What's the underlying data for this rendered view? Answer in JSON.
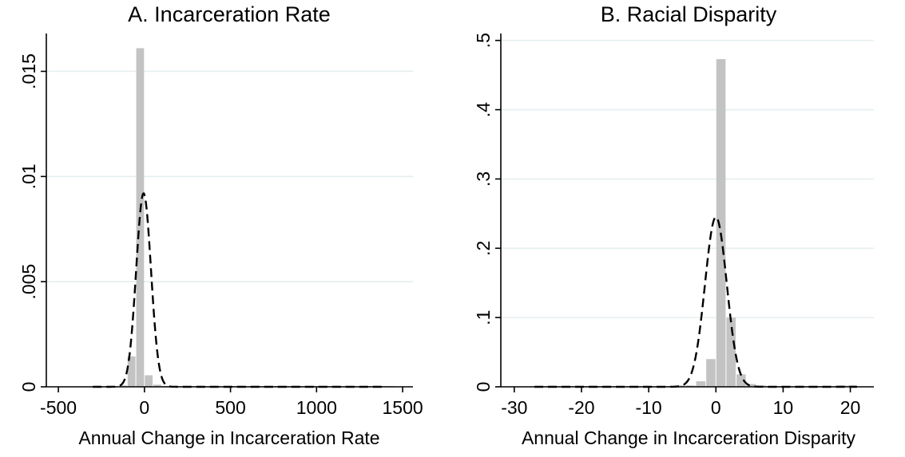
{
  "chart_data": [
    {
      "type": "bar",
      "title": "A. Incarceration Rate",
      "xlabel": "Annual Change in Incarceration Rate",
      "ylabel": "",
      "xlim": [
        -570,
        1560
      ],
      "ylim": [
        0,
        0.0168
      ],
      "xticks": [
        -500,
        0,
        500,
        1000,
        1500
      ],
      "xtick_labels": [
        "-500",
        "0",
        "500",
        "1000",
        "1500"
      ],
      "yticks": [
        0,
        0.005,
        0.01,
        0.015
      ],
      "ytick_labels": [
        "0",
        ".005",
        ".01",
        ".015"
      ],
      "grid": true,
      "bin_width": 50,
      "bars": [
        {
          "x0": -300,
          "x1": -250,
          "y": 3e-05
        },
        {
          "x0": -250,
          "x1": -200,
          "y": 3e-05
        },
        {
          "x0": -200,
          "x1": -150,
          "y": 3e-05
        },
        {
          "x0": -150,
          "x1": -100,
          "y": 6e-05
        },
        {
          "x0": -100,
          "x1": -50,
          "y": 0.00145
        },
        {
          "x0": -50,
          "x1": 0,
          "y": 0.0161
        },
        {
          "x0": 0,
          "x1": 50,
          "y": 0.00055
        },
        {
          "x0": 50,
          "x1": 100,
          "y": 0.0001
        },
        {
          "x0": 100,
          "x1": 150,
          "y": 4e-05
        },
        {
          "x0": 150,
          "x1": 200,
          "y": 3e-05
        },
        {
          "x0": 200,
          "x1": 250,
          "y": 3e-05
        },
        {
          "x0": 250,
          "x1": 300,
          "y": 3e-05
        },
        {
          "x0": 300,
          "x1": 350,
          "y": 2e-05
        },
        {
          "x0": 350,
          "x1": 400,
          "y": 2e-05
        },
        {
          "x0": 400,
          "x1": 450,
          "y": 2e-05
        },
        {
          "x0": 450,
          "x1": 500,
          "y": 2e-05
        },
        {
          "x0": 500,
          "x1": 550,
          "y": 2e-05
        },
        {
          "x0": 550,
          "x1": 600,
          "y": 2e-05
        },
        {
          "x0": 600,
          "x1": 650,
          "y": 2e-05
        },
        {
          "x0": 650,
          "x1": 700,
          "y": 2e-05
        },
        {
          "x0": 700,
          "x1": 750,
          "y": 2e-05
        },
        {
          "x0": 750,
          "x1": 800,
          "y": 2e-05
        },
        {
          "x0": 800,
          "x1": 850,
          "y": 2e-05
        },
        {
          "x0": 850,
          "x1": 900,
          "y": 2e-05
        },
        {
          "x0": 900,
          "x1": 950,
          "y": 2e-05
        },
        {
          "x0": 950,
          "x1": 1000,
          "y": 2e-05
        },
        {
          "x0": 1000,
          "x1": 1050,
          "y": 2e-05
        },
        {
          "x0": 1050,
          "x1": 1100,
          "y": 2e-05
        },
        {
          "x0": 1100,
          "x1": 1150,
          "y": 2e-05
        },
        {
          "x0": 1150,
          "x1": 1200,
          "y": 2e-05
        },
        {
          "x0": 1200,
          "x1": 1250,
          "y": 2e-05
        },
        {
          "x0": 1250,
          "x1": 1300,
          "y": 2e-05
        },
        {
          "x0": 1300,
          "x1": 1350,
          "y": 2e-05
        },
        {
          "x0": 1350,
          "x1": 1400,
          "y": 2e-05
        },
        {
          "x0": 1400,
          "x1": 1450,
          "y": 3e-05
        }
      ],
      "density_curve": {
        "type": "normal",
        "mean": -5,
        "sd": 43,
        "peak": 0.0092,
        "x_range": [
          -300,
          1400
        ],
        "style": "dashed"
      }
    },
    {
      "type": "bar",
      "title": "B. Racial Disparity",
      "xlabel": "Annual Change in Incarceration Disparity",
      "ylabel": "",
      "xlim": [
        -32,
        23.5
      ],
      "ylim": [
        0,
        0.51
      ],
      "xticks": [
        -30,
        -20,
        -10,
        0,
        10,
        20
      ],
      "xtick_labels": [
        "-30",
        "-20",
        "-10",
        "0",
        "10",
        "20"
      ],
      "yticks": [
        0,
        0.1,
        0.2,
        0.3,
        0.4,
        0.5
      ],
      "ytick_labels": [
        "0",
        ".1",
        ".2",
        ".3",
        ".4",
        ".5"
      ],
      "grid": true,
      "bin_width": 1.5,
      "bars": [
        {
          "x0": -27,
          "x1": -25.5,
          "y": 0.001
        },
        {
          "x0": -25.5,
          "x1": -24,
          "y": 0.001
        },
        {
          "x0": -24,
          "x1": -22.5,
          "y": 0.001
        },
        {
          "x0": -22.5,
          "x1": -21,
          "y": 0.001
        },
        {
          "x0": -21,
          "x1": -19.5,
          "y": 0.001
        },
        {
          "x0": -19.5,
          "x1": -18,
          "y": 0.001
        },
        {
          "x0": -18,
          "x1": -16.5,
          "y": 0.001
        },
        {
          "x0": -16.5,
          "x1": -15,
          "y": 0.001
        },
        {
          "x0": -15,
          "x1": -13.5,
          "y": 0.001
        },
        {
          "x0": -13.5,
          "x1": -12,
          "y": 0.001
        },
        {
          "x0": -12,
          "x1": -10.5,
          "y": 0.001
        },
        {
          "x0": -10.5,
          "x1": -9,
          "y": 0.001
        },
        {
          "x0": -9,
          "x1": -7.5,
          "y": 0.001
        },
        {
          "x0": -7.5,
          "x1": -6,
          "y": 0.001
        },
        {
          "x0": -6,
          "x1": -4.5,
          "y": 0.002
        },
        {
          "x0": -4.5,
          "x1": -3,
          "y": 0.002
        },
        {
          "x0": -3,
          "x1": -1.5,
          "y": 0.008
        },
        {
          "x0": -1.5,
          "x1": 0,
          "y": 0.04
        },
        {
          "x0": 0,
          "x1": 1.5,
          "y": 0.473
        },
        {
          "x0": 1.5,
          "x1": 3,
          "y": 0.1
        },
        {
          "x0": 3,
          "x1": 4.5,
          "y": 0.018
        },
        {
          "x0": 4.5,
          "x1": 6,
          "y": 0.004
        },
        {
          "x0": 6,
          "x1": 7.5,
          "y": 0.002
        },
        {
          "x0": 7.5,
          "x1": 9,
          "y": 0.001
        },
        {
          "x0": 9,
          "x1": 10.5,
          "y": 0.001
        },
        {
          "x0": 10.5,
          "x1": 12,
          "y": 0.001
        },
        {
          "x0": 12,
          "x1": 13.5,
          "y": 0.001
        },
        {
          "x0": 13.5,
          "x1": 15,
          "y": 0.001
        },
        {
          "x0": 15,
          "x1": 16.5,
          "y": 0.001
        },
        {
          "x0": 16.5,
          "x1": 18,
          "y": 0.001
        },
        {
          "x0": 18,
          "x1": 19.5,
          "y": 0.002
        },
        {
          "x0": 19.5,
          "x1": 21,
          "y": 0.002
        }
      ],
      "density_curve": {
        "type": "normal",
        "mean": 0,
        "sd": 1.62,
        "peak": 0.245,
        "x_range": [
          -27,
          21
        ],
        "style": "dashed"
      }
    }
  ],
  "colors": {
    "bar": "#c3c3c3",
    "grid": "#e6eef0",
    "axis": "#000000",
    "curve": "#000000"
  }
}
